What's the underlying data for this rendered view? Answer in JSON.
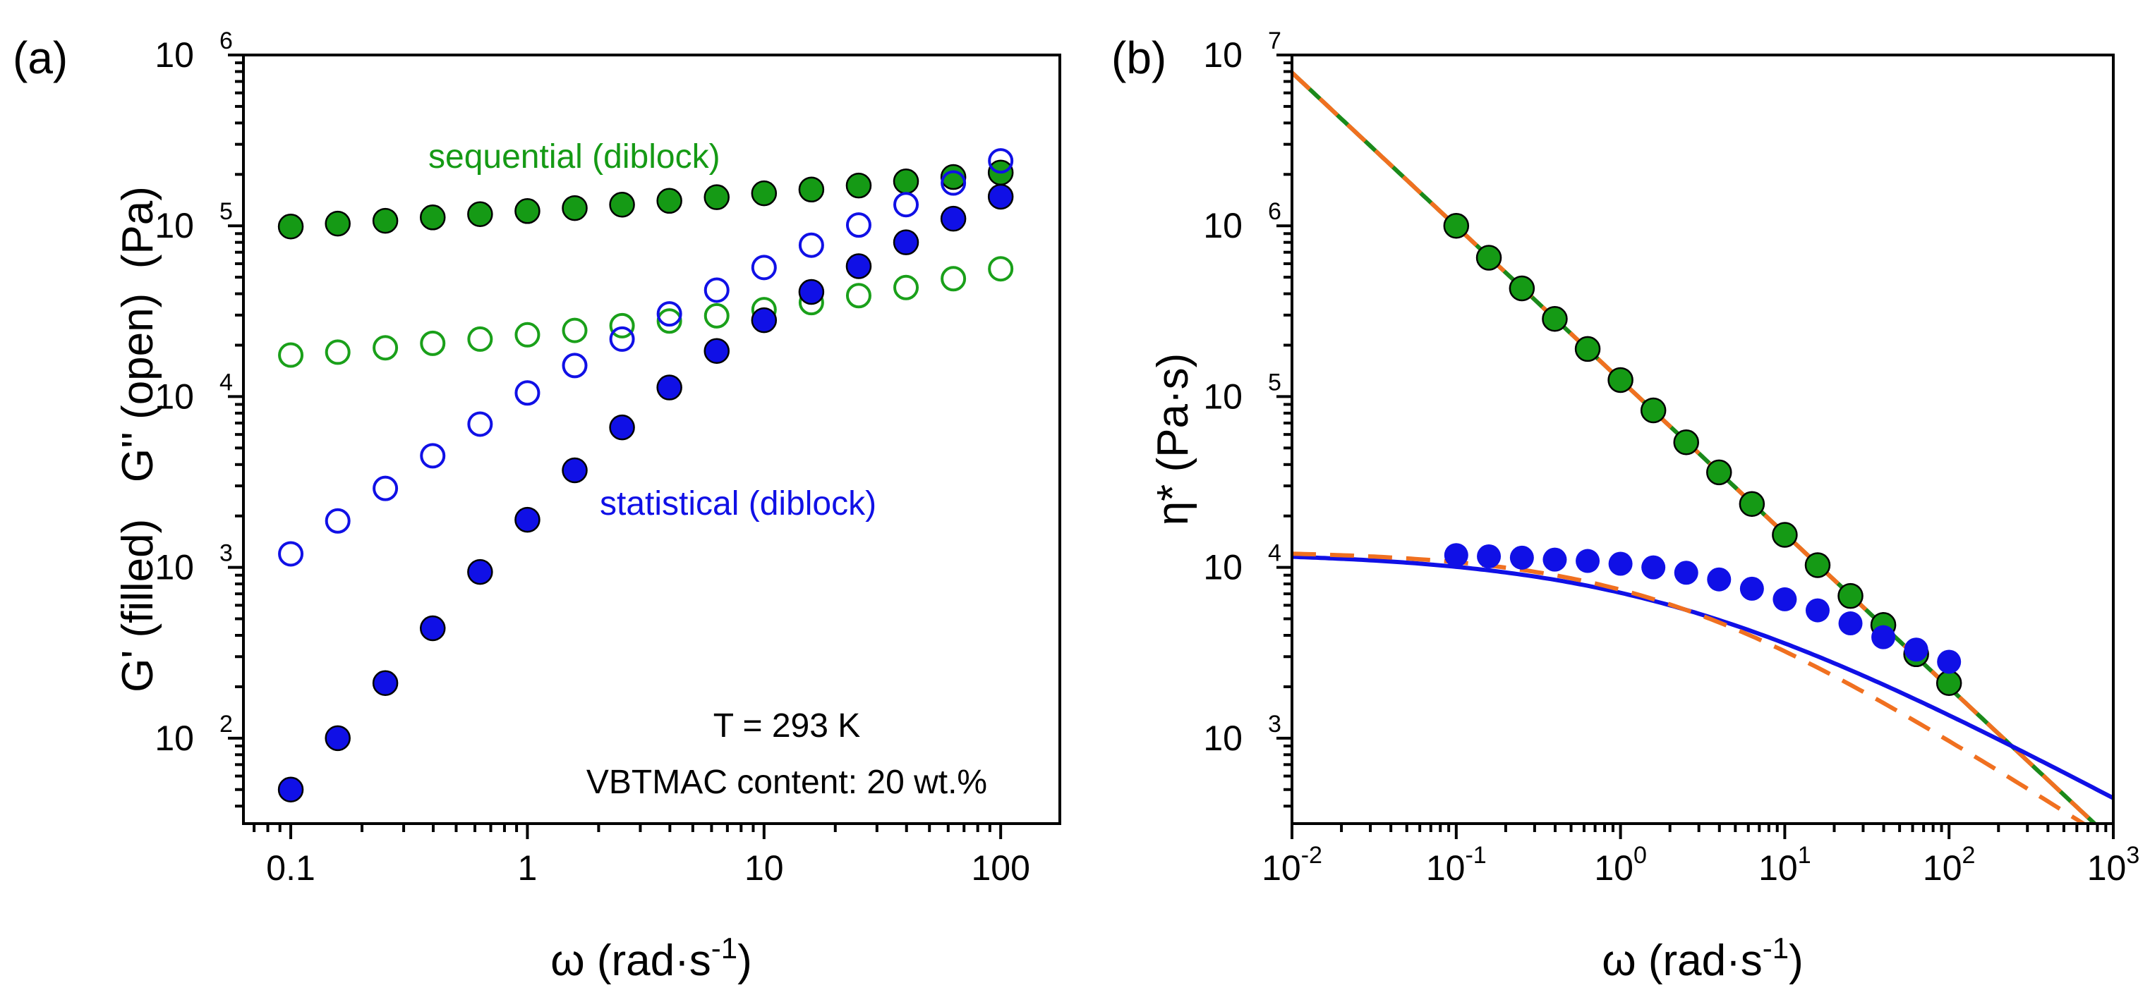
{
  "chart_data": [
    {
      "type": "scatter",
      "panel_label": "(a)",
      "title": "",
      "xscale": "log",
      "yscale": "log",
      "xlim": [
        0.0631,
        177.8
      ],
      "ylim": [
        31.6,
        1000000
      ],
      "xlabel": "ω (rad·s-1)",
      "xlabel_parts": {
        "base": "ω (rad·s",
        "sup": "-1",
        "tail": ")"
      },
      "ylabel": "G' (filled)   G'' (open)  (Pa)",
      "xticks": [
        {
          "value": 0.1,
          "label": "0.1"
        },
        {
          "value": 1,
          "label": "1"
        },
        {
          "value": 10,
          "label": "10"
        },
        {
          "value": 100,
          "label": "100"
        }
      ],
      "yticks": [
        {
          "value": 100,
          "base": "10",
          "exp": "2"
        },
        {
          "value": 1000,
          "base": "10",
          "exp": "3"
        },
        {
          "value": 10000,
          "base": "10",
          "exp": "4"
        },
        {
          "value": 100000,
          "base": "10",
          "exp": "5"
        },
        {
          "value": 1000000,
          "base": "10",
          "exp": "6"
        }
      ],
      "x": [
        0.1,
        0.158,
        0.251,
        0.398,
        0.631,
        1.0,
        1.585,
        2.512,
        3.981,
        6.31,
        10.0,
        15.85,
        25.12,
        39.81,
        63.1,
        100.0
      ],
      "series": [
        {
          "name": "sequential (diblock) G'",
          "marker": "filled",
          "color": "#159a15",
          "values": [
            99000,
            103000,
            107000,
            112000,
            117000,
            122000,
            127000,
            133000,
            140000,
            147000,
            155000,
            163000,
            172000,
            182000,
            193000,
            205000
          ]
        },
        {
          "name": "sequential (diblock) G''",
          "marker": "open",
          "color": "#1aa01a",
          "values": [
            17500,
            18200,
            19300,
            20500,
            21700,
            23000,
            24400,
            26000,
            27700,
            29700,
            32300,
            35500,
            39000,
            43500,
            49000,
            56000
          ]
        },
        {
          "name": "statistical (diblock) G'",
          "marker": "filled",
          "color": "#1010e6",
          "values": [
            50,
            100,
            210,
            440,
            940,
            1900,
            3700,
            6600,
            11300,
            18500,
            28000,
            41000,
            58000,
            80000,
            110000,
            148000
          ]
        },
        {
          "name": "statistical (diblock) G''",
          "marker": "open",
          "color": "#1010e6",
          "values": [
            1200,
            1870,
            2900,
            4500,
            6900,
            10500,
            15200,
            21700,
            30500,
            42000,
            57000,
            77000,
            101000,
            133000,
            178000,
            240000
          ]
        }
      ],
      "annotations": {
        "sequential": "sequential (diblock)",
        "statistical": "statistical (diblock)",
        "temperature": "T = 293 K",
        "content": "VBTMAC content: 20 wt.%"
      }
    },
    {
      "type": "scatter",
      "panel_label": "(b)",
      "title": "",
      "xscale": "log",
      "yscale": "log",
      "xlim": [
        0.01,
        1000
      ],
      "ylim": [
        316,
        10000000
      ],
      "xlabel": "ω (rad·s-1)",
      "xlabel_parts": {
        "base": "ω (rad·s",
        "sup": "-1",
        "tail": ")"
      },
      "ylabel": "η* (Pa·s)",
      "xticks": [
        {
          "value": 0.01,
          "base": "10",
          "exp": "-2"
        },
        {
          "value": 0.1,
          "base": "10",
          "exp": "-1"
        },
        {
          "value": 1,
          "base": "10",
          "exp": "0"
        },
        {
          "value": 10,
          "base": "10",
          "exp": "1"
        },
        {
          "value": 100,
          "base": "10",
          "exp": "2"
        },
        {
          "value": 1000,
          "base": "10",
          "exp": "3"
        }
      ],
      "yticks": [
        {
          "value": 1000,
          "base": "10",
          "exp": "3"
        },
        {
          "value": 10000,
          "base": "10",
          "exp": "4"
        },
        {
          "value": 100000,
          "base": "10",
          "exp": "5"
        },
        {
          "value": 1000000,
          "base": "10",
          "exp": "6"
        },
        {
          "value": 10000000,
          "base": "10",
          "exp": "7"
        }
      ],
      "x": [
        0.1,
        0.158,
        0.251,
        0.398,
        0.631,
        1.0,
        1.585,
        2.512,
        3.981,
        6.31,
        10.0,
        15.85,
        25.12,
        39.81,
        63.1,
        100.0
      ],
      "series": [
        {
          "name": "sequential (diblock) η*",
          "marker": "filled",
          "color": "#159a15",
          "values": [
            1000000,
            650000,
            430000,
            285000,
            190000,
            125000,
            83000,
            54000,
            36000,
            23500,
            15500,
            10300,
            6800,
            4600,
            3100,
            2100
          ]
        },
        {
          "name": "statistical (diblock) η*",
          "marker": "filled",
          "color": "#1010e6",
          "values": [
            11800,
            11600,
            11400,
            11100,
            10900,
            10500,
            10000,
            9300,
            8500,
            7500,
            6500,
            5600,
            4700,
            3900,
            3300,
            2800
          ]
        }
      ],
      "fits": [
        {
          "name": "sequential power-law fit",
          "style": "solid",
          "color": "#1a8a1a",
          "model": "power",
          "a": 125000,
          "b": -0.9
        },
        {
          "name": "sequential fit (dashed)",
          "style": "dashed",
          "color": "#f07020",
          "model": "power",
          "a": 125000,
          "b": -0.9
        },
        {
          "name": "statistical model fit",
          "style": "solid",
          "color": "#1010e6",
          "model": "cross",
          "eta0": 12300,
          "lambda": 0.55,
          "n": 0.52
        },
        {
          "name": "statistical fit (dashed)",
          "style": "dashed",
          "color": "#f07020",
          "model": "cross",
          "eta0": 12500,
          "lambda": 0.55,
          "n": 0.62
        }
      ]
    }
  ]
}
